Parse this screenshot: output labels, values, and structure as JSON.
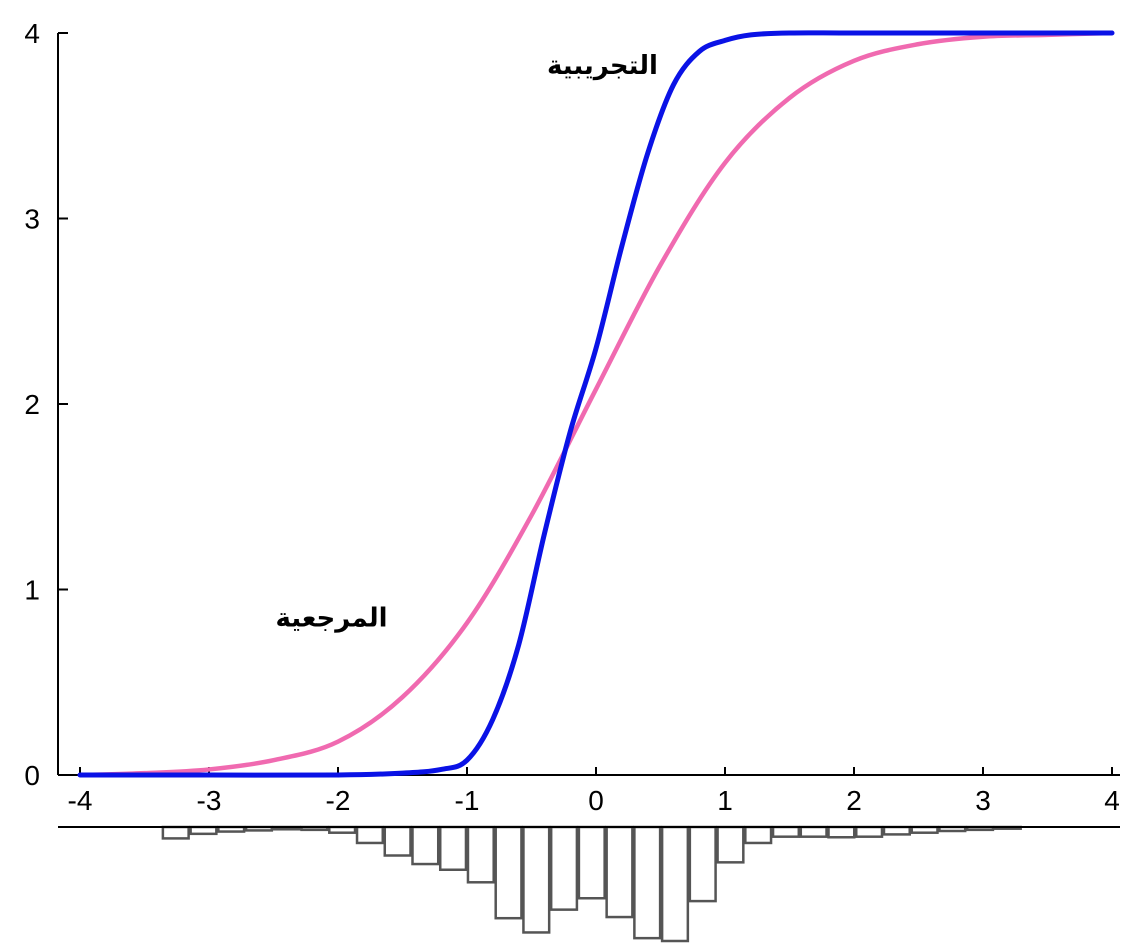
{
  "chart_data": {
    "type": "line",
    "title": "",
    "xlabel": "",
    "ylabel": "",
    "xlim": [
      -4,
      4
    ],
    "ylim": [
      0,
      4
    ],
    "x_ticks": [
      "-4",
      "-3",
      "-2",
      "-1",
      "0",
      "1",
      "2",
      "3",
      "4"
    ],
    "y_ticks": [
      "0",
      "1",
      "2",
      "3",
      "4"
    ],
    "grid": false,
    "series": [
      {
        "name": "التجريبية",
        "color": "#0a12e6",
        "x": [
          -4,
          -3,
          -2,
          -1.5,
          -1.2,
          -1,
          -0.8,
          -0.6,
          -0.4,
          -0.2,
          0,
          0.2,
          0.4,
          0.6,
          0.8,
          1,
          1.2,
          1.5,
          2,
          3,
          4
        ],
        "y": [
          0,
          0,
          0,
          0.01,
          0.03,
          0.08,
          0.3,
          0.7,
          1.3,
          1.85,
          2.3,
          2.85,
          3.35,
          3.72,
          3.9,
          3.96,
          3.99,
          4,
          4,
          4,
          4
        ]
      },
      {
        "name": "المرجعية",
        "color": "#f06ab0",
        "x": [
          -4,
          -3.5,
          -3,
          -2.5,
          -2,
          -1.5,
          -1,
          -0.5,
          0,
          0.5,
          1,
          1.5,
          2,
          2.5,
          3,
          3.5,
          4
        ],
        "y": [
          0,
          0.01,
          0.03,
          0.08,
          0.18,
          0.42,
          0.82,
          1.4,
          2.08,
          2.75,
          3.3,
          3.65,
          3.85,
          3.94,
          3.98,
          3.99,
          4
        ]
      }
    ],
    "annotations": [
      {
        "text": "التجريبية",
        "x": 0.05,
        "y": 3.78
      },
      {
        "text": "المرجعية",
        "x": -2.05,
        "y": 0.8
      }
    ],
    "histogram": {
      "bin_width": 0.215,
      "bins": [
        {
          "x": -3.25,
          "count": 0.2
        },
        {
          "x": -3.035,
          "count": 0.12
        },
        {
          "x": -2.82,
          "count": 0.08
        },
        {
          "x": -2.605,
          "count": 0.06
        },
        {
          "x": -2.39,
          "count": 0.04
        },
        {
          "x": -2.175,
          "count": 0.05
        },
        {
          "x": -1.96,
          "count": 0.1
        },
        {
          "x": -1.745,
          "count": 0.28
        },
        {
          "x": -1.53,
          "count": 0.5
        },
        {
          "x": -1.315,
          "count": 0.65
        },
        {
          "x": -1.1,
          "count": 0.75
        },
        {
          "x": -0.885,
          "count": 0.97
        },
        {
          "x": -0.67,
          "count": 1.6
        },
        {
          "x": -0.455,
          "count": 1.85
        },
        {
          "x": -0.24,
          "count": 1.45
        },
        {
          "x": -0.025,
          "count": 1.25
        },
        {
          "x": 0.19,
          "count": 1.58
        },
        {
          "x": 0.405,
          "count": 1.95
        },
        {
          "x": 0.62,
          "count": 2.0
        },
        {
          "x": 0.835,
          "count": 1.3
        },
        {
          "x": 1.05,
          "count": 0.62
        },
        {
          "x": 1.265,
          "count": 0.28
        },
        {
          "x": 1.48,
          "count": 0.17
        },
        {
          "x": 1.695,
          "count": 0.17
        },
        {
          "x": 1.91,
          "count": 0.18
        },
        {
          "x": 2.125,
          "count": 0.17
        },
        {
          "x": 2.34,
          "count": 0.13
        },
        {
          "x": 2.555,
          "count": 0.1
        },
        {
          "x": 2.77,
          "count": 0.07
        },
        {
          "x": 2.985,
          "count": 0.05
        },
        {
          "x": 3.2,
          "count": 0.03
        }
      ]
    }
  }
}
